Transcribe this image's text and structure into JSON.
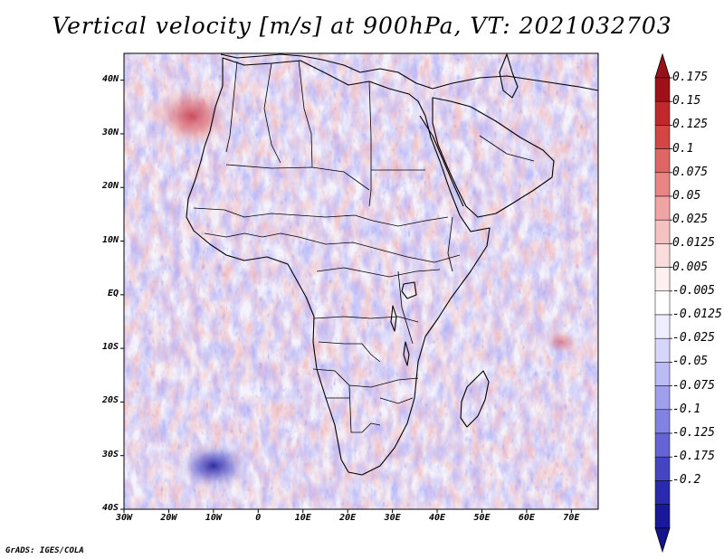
{
  "title": "Vertical velocity [m/s] at 900hPa, VT: 2021032703",
  "credit": "GrADS: IGES/COLA",
  "map": {
    "region": "Africa",
    "lon_range": [
      -30,
      76
    ],
    "lat_range": [
      -40,
      45
    ],
    "lat_ticks": [
      {
        "value": 40,
        "label": "40N"
      },
      {
        "value": 30,
        "label": "30N"
      },
      {
        "value": 20,
        "label": "20N"
      },
      {
        "value": 10,
        "label": "10N"
      },
      {
        "value": 0,
        "label": "EQ"
      },
      {
        "value": -10,
        "label": "10S"
      },
      {
        "value": -20,
        "label": "20S"
      },
      {
        "value": -30,
        "label": "30S"
      },
      {
        "value": -40,
        "label": "40S"
      }
    ],
    "lon_ticks": [
      {
        "value": -30,
        "label": "30W"
      },
      {
        "value": -20,
        "label": "20W"
      },
      {
        "value": -10,
        "label": "10W"
      },
      {
        "value": 0,
        "label": "0"
      },
      {
        "value": 10,
        "label": "10E"
      },
      {
        "value": 20,
        "label": "20E"
      },
      {
        "value": 30,
        "label": "30E"
      },
      {
        "value": 40,
        "label": "40E"
      },
      {
        "value": 50,
        "label": "50E"
      },
      {
        "value": 60,
        "label": "60E"
      },
      {
        "value": 70,
        "label": "70E"
      }
    ]
  },
  "colorbar": {
    "labels": [
      "0.175",
      "0.15",
      "0.125",
      "0.1",
      "0.075",
      "0.05",
      "0.025",
      "0.0125",
      "0.005",
      "-0.005",
      "-0.0125",
      "-0.025",
      "-0.05",
      "-0.075",
      "-0.1",
      "-0.125",
      "-0.175",
      "-0.2"
    ],
    "colors": [
      "#a01018",
      "#c0282d",
      "#d54545",
      "#e06565",
      "#e98585",
      "#f0a5a5",
      "#f5c2c2",
      "#fadcdc",
      "#fdf0f0",
      "#ffffff",
      "#eeeeff",
      "#d6d6fa",
      "#bcbcf4",
      "#9f9fec",
      "#8282e2",
      "#6464d6",
      "#4545c4",
      "#2a2ab0",
      "#18189a"
    ],
    "arrow_top_color": "#9a1018",
    "arrow_bottom_color": "#14148c"
  }
}
